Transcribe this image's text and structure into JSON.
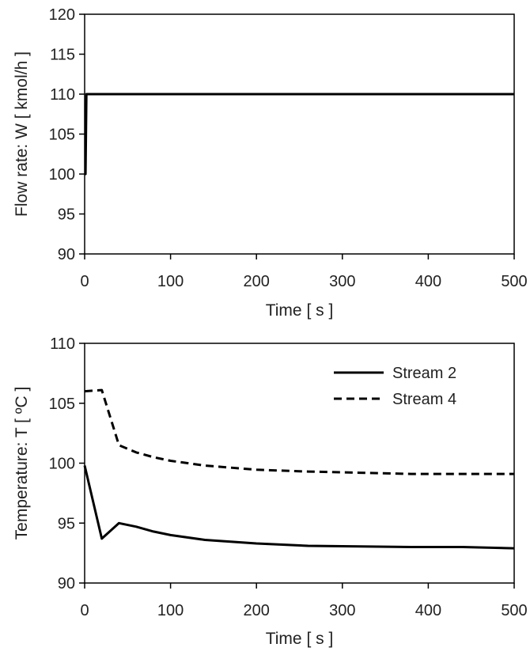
{
  "chart_data": [
    {
      "type": "line",
      "xlabel": "Time [ s ]",
      "ylabel": "Flow rate: W [ kmol/h ]",
      "xlim": [
        0,
        500
      ],
      "ylim": [
        90,
        120
      ],
      "xticks": [
        0,
        100,
        200,
        300,
        400,
        500
      ],
      "yticks": [
        90,
        95,
        100,
        105,
        110,
        115,
        120
      ],
      "grid": false,
      "series": [
        {
          "color": "#000000",
          "dash": "solid",
          "x": [
            0,
            1,
            2,
            3,
            500
          ],
          "y": [
            100,
            100,
            110,
            110,
            110
          ]
        }
      ]
    },
    {
      "type": "line",
      "xlabel": "Time [ s ]",
      "ylabel": "Temperature: T [ ºC ]",
      "xlim": [
        0,
        500
      ],
      "ylim": [
        90,
        110
      ],
      "xticks": [
        0,
        100,
        200,
        300,
        400,
        500
      ],
      "yticks": [
        90,
        95,
        100,
        105,
        110
      ],
      "grid": false,
      "legend_position": "top-right",
      "series": [
        {
          "name": "Stream 2",
          "color": "#000000",
          "dash": "solid",
          "x": [
            0,
            20,
            40,
            60,
            80,
            100,
            140,
            200,
            260,
            320,
            380,
            440,
            500
          ],
          "y": [
            99.8,
            93.7,
            95.0,
            94.7,
            94.3,
            94.0,
            93.6,
            93.3,
            93.1,
            93.05,
            93.0,
            93.0,
            92.9
          ]
        },
        {
          "name": "Stream 4",
          "color": "#000000",
          "dash": "dashed",
          "x": [
            0,
            20,
            40,
            60,
            80,
            100,
            140,
            200,
            260,
            320,
            380,
            440,
            500
          ],
          "y": [
            106.0,
            106.1,
            101.5,
            100.9,
            100.5,
            100.2,
            99.8,
            99.45,
            99.3,
            99.2,
            99.1,
            99.1,
            99.1
          ]
        }
      ]
    }
  ]
}
